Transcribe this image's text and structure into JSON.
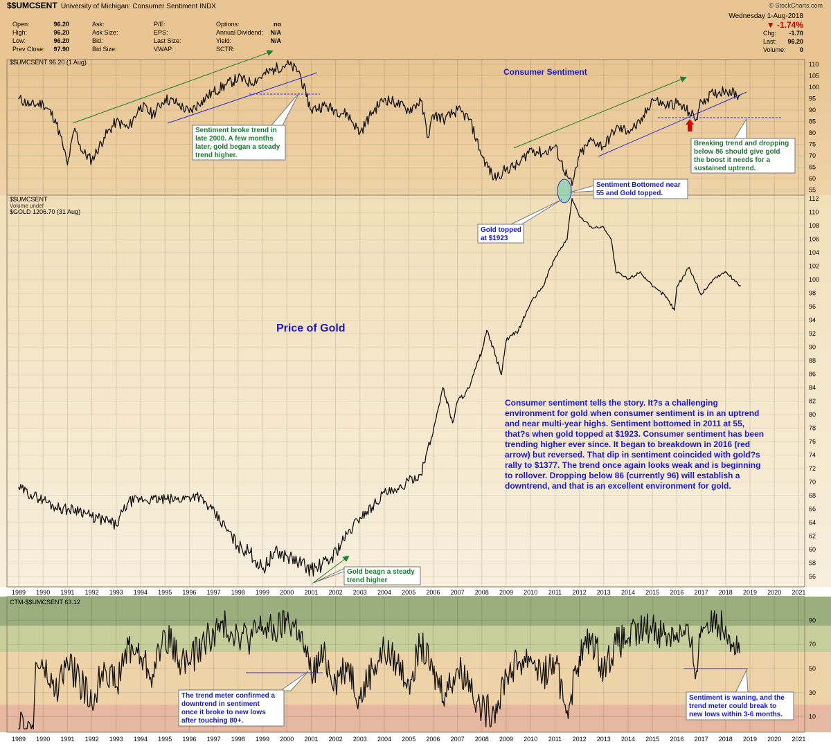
{
  "header": {
    "symbol": "$$UMCSENT",
    "description": "University of Michigan: Consumer Sentiment  INDX",
    "brand": "© StockCharts.com",
    "date": "Wednesday  1-Aug-2018",
    "change_pct": "▼ -1.74%",
    "change_color": "#c00000",
    "quote_rows": [
      {
        "label1": "Open:",
        "val1": "96.20",
        "label2": "Ask:",
        "val2": "",
        "label3": "P/E:",
        "val3": "",
        "label4": "Options:",
        "val4": "no"
      },
      {
        "label1": "High:",
        "val1": "96.20",
        "label2": "Ask Size:",
        "val2": "",
        "label3": "EPS:",
        "val3": "",
        "label4": "Annual Dividend:",
        "val4": "N/A"
      },
      {
        "label1": "Low:",
        "val1": "96.20",
        "label2": "Bid:",
        "val2": "",
        "label3": "Last Size:",
        "val3": "",
        "label4": "Yield:",
        "val4": "N/A"
      },
      {
        "label1": "Prev Close:",
        "val1": "97.90",
        "label2": "Bid Size:",
        "val2": "",
        "label3": "VWAP:",
        "val3": "",
        "label4": "SCTR:",
        "val4": ""
      }
    ],
    "right_rows": [
      {
        "label": "Chg:",
        "value": "-1.70"
      },
      {
        "label": "Last:",
        "value": "96.20"
      },
      {
        "label": "Volume:",
        "value": "0"
      }
    ]
  },
  "panel_labels": {
    "top": "$$UMCSENT 96.20 (1 Aug)",
    "mid_1": "$$UMCSENT",
    "mid_2": "Volume undef",
    "mid_3": "$GOLD 1206.70 (31 Aug)",
    "bottom": "CTM-$$UMCSENT 63.12"
  },
  "titles": {
    "consumer_sentiment": "Consumer Sentiment",
    "price_of_gold": "Price of Gold"
  },
  "annotations": {
    "broke_trend": [
      "Sentiment broke trend in",
      "late 2000. A few months",
      "later, gold began a steady",
      "trend higher."
    ],
    "breaking_trend": [
      "Breaking trend and dropping",
      "below 86 should give gold",
      "the boost it needs for a",
      "sustained uptrend."
    ],
    "bottomed": [
      "Sentiment Bottomed near",
      "55 and Gold topped."
    ],
    "gold_topped": [
      "Gold topped",
      "at $1923"
    ],
    "gold_steady": [
      "Gold beagn a steady",
      "trend higher"
    ],
    "trend_meter": [
      "The trend meter confirmed a",
      "downtrend in sentiment",
      "once it broke to new lows",
      "after touching 80+."
    ],
    "waning": [
      "Sentiment is waning, and the",
      "trend meter could break to",
      "new lows within 3-6 months."
    ],
    "story": [
      "Consumer sentiment tells the story. It?s a challenging",
      "environment for gold when consumer sentiment is in an uptrend",
      "and near multi-year highs. Sentiment bottomed in 2011 at 55,",
      "that?s when gold topped at $1923. Consumer sentiment has been",
      "trending higher ever since. It began to breakdown in 2016 (red",
      "arrow) but reversed. That dip in sentiment coincided with gold?s",
      "rally to $1377. The trend once again looks weak and is beginning",
      "to rollover. Dropping below 86 (currently 96) will establish a",
      "downtrend, and that is an excellent environment for gold."
    ]
  },
  "chart_data": [
    {
      "type": "line",
      "name": "$$UMCSENT",
      "x": [
        1989.0,
        1989.5,
        1990.0,
        1990.5,
        1990.8,
        1991.0,
        1991.3,
        1991.6,
        1992.0,
        1992.5,
        1993.0,
        1993.5,
        1994.0,
        1994.5,
        1995.0,
        1995.5,
        1996.0,
        1996.5,
        1997.0,
        1997.5,
        1998.0,
        1998.5,
        1999.0,
        1999.5,
        2000.0,
        2000.5,
        2000.8,
        2001.0,
        2001.5,
        2002.0,
        2002.5,
        2003.0,
        2003.5,
        2004.0,
        2004.5,
        2005.0,
        2005.5,
        2005.8,
        2006.0,
        2006.5,
        2007.0,
        2007.5,
        2008.0,
        2008.5,
        2009.0,
        2009.5,
        2010.0,
        2010.5,
        2011.0,
        2011.5,
        2011.7,
        2012.0,
        2012.5,
        2013.0,
        2013.5,
        2014.0,
        2014.5,
        2015.0,
        2015.5,
        2016.0,
        2016.5,
        2016.8,
        2017.0,
        2017.5,
        2018.0,
        2018.58
      ],
      "y": [
        95,
        92,
        93,
        86,
        75,
        66,
        82,
        72,
        68,
        78,
        85,
        82,
        92,
        88,
        95,
        93,
        89,
        94,
        98,
        101,
        104,
        102,
        105,
        108,
        110,
        107,
        96,
        90,
        92,
        90,
        88,
        80,
        89,
        95,
        93,
        90,
        94,
        78,
        88,
        86,
        90,
        86,
        70,
        60,
        64,
        66,
        73,
        71,
        74,
        61,
        57,
        70,
        77,
        74,
        82,
        81,
        84,
        95,
        92,
        93,
        89,
        86,
        94,
        97,
        99,
        96.2
      ]
    },
    {
      "type": "line",
      "name": "$GOLD",
      "x": [
        1989.0,
        1989.5,
        1990.0,
        1990.5,
        1991.0,
        1991.5,
        1992.0,
        1992.5,
        1993.0,
        1993.5,
        1994.0,
        1994.5,
        1995.0,
        1995.5,
        1996.0,
        1996.3,
        1996.8,
        1997.5,
        1998.0,
        1998.5,
        1999.0,
        1999.5,
        2000.0,
        2000.5,
        2001.0,
        2001.3,
        2001.8,
        2002.5,
        2003.0,
        2003.5,
        2004.0,
        2004.5,
        2005.0,
        2005.5,
        2006.0,
        2006.4,
        2006.8,
        2007.0,
        2007.5,
        2008.0,
        2008.2,
        2008.8,
        2009.0,
        2009.5,
        2010.0,
        2010.5,
        2011.0,
        2011.5,
        2011.7,
        2012.0,
        2012.5,
        2013.0,
        2013.3,
        2013.5,
        2014.0,
        2014.5,
        2015.0,
        2015.5,
        2015.9,
        2016.0,
        2016.5,
        2017.0,
        2017.5,
        2018.0,
        2018.6
      ],
      "y": [
        410,
        395,
        385,
        370,
        365,
        365,
        350,
        345,
        335,
        380,
        385,
        385,
        385,
        385,
        390,
        395,
        370,
        330,
        300,
        290,
        265,
        290,
        285,
        275,
        265,
        268,
        280,
        320,
        350,
        370,
        400,
        400,
        425,
        440,
        550,
        700,
        580,
        650,
        700,
        850,
        950,
        750,
        900,
        950,
        1100,
        1200,
        1400,
        1550,
        1923,
        1750,
        1650,
        1650,
        1550,
        1300,
        1250,
        1300,
        1200,
        1150,
        1060,
        1200,
        1330,
        1150,
        1250,
        1300,
        1206.7
      ]
    },
    {
      "type": "line",
      "name": "CTM-$$UMCSENT",
      "x": [
        1989.0,
        1989.6,
        1989.7,
        1990.0,
        1990.5,
        1991.0,
        1991.5,
        1992.0,
        1992.5,
        1993.0,
        1993.5,
        1994.0,
        1994.5,
        1995.0,
        1995.5,
        1996.0,
        1996.5,
        1997.0,
        1997.5,
        1998.0,
        1998.5,
        1999.0,
        1999.5,
        2000.0,
        2000.5,
        2000.8,
        2001.0,
        2001.5,
        2002.0,
        2002.5,
        2003.0,
        2003.5,
        2004.0,
        2004.5,
        2005.0,
        2005.5,
        2006.0,
        2006.5,
        2007.0,
        2007.5,
        2008.0,
        2008.5,
        2009.0,
        2009.5,
        2010.0,
        2010.5,
        2011.0,
        2011.5,
        2012.0,
        2012.5,
        2013.0,
        2013.5,
        2014.0,
        2014.5,
        2015.0,
        2015.5,
        2016.0,
        2016.5,
        2016.8,
        2017.0,
        2017.5,
        2018.0,
        2018.58
      ],
      "y": [
        0,
        0,
        55,
        50,
        30,
        55,
        40,
        20,
        55,
        35,
        70,
        60,
        45,
        80,
        60,
        55,
        70,
        80,
        85,
        80,
        75,
        85,
        80,
        90,
        82,
        60,
        45,
        60,
        40,
        55,
        25,
        50,
        65,
        55,
        40,
        70,
        45,
        30,
        50,
        40,
        15,
        15,
        45,
        55,
        60,
        45,
        55,
        15,
        60,
        75,
        50,
        70,
        75,
        80,
        85,
        78,
        80,
        75,
        48,
        85,
        90,
        85,
        63.12
      ]
    }
  ]
}
